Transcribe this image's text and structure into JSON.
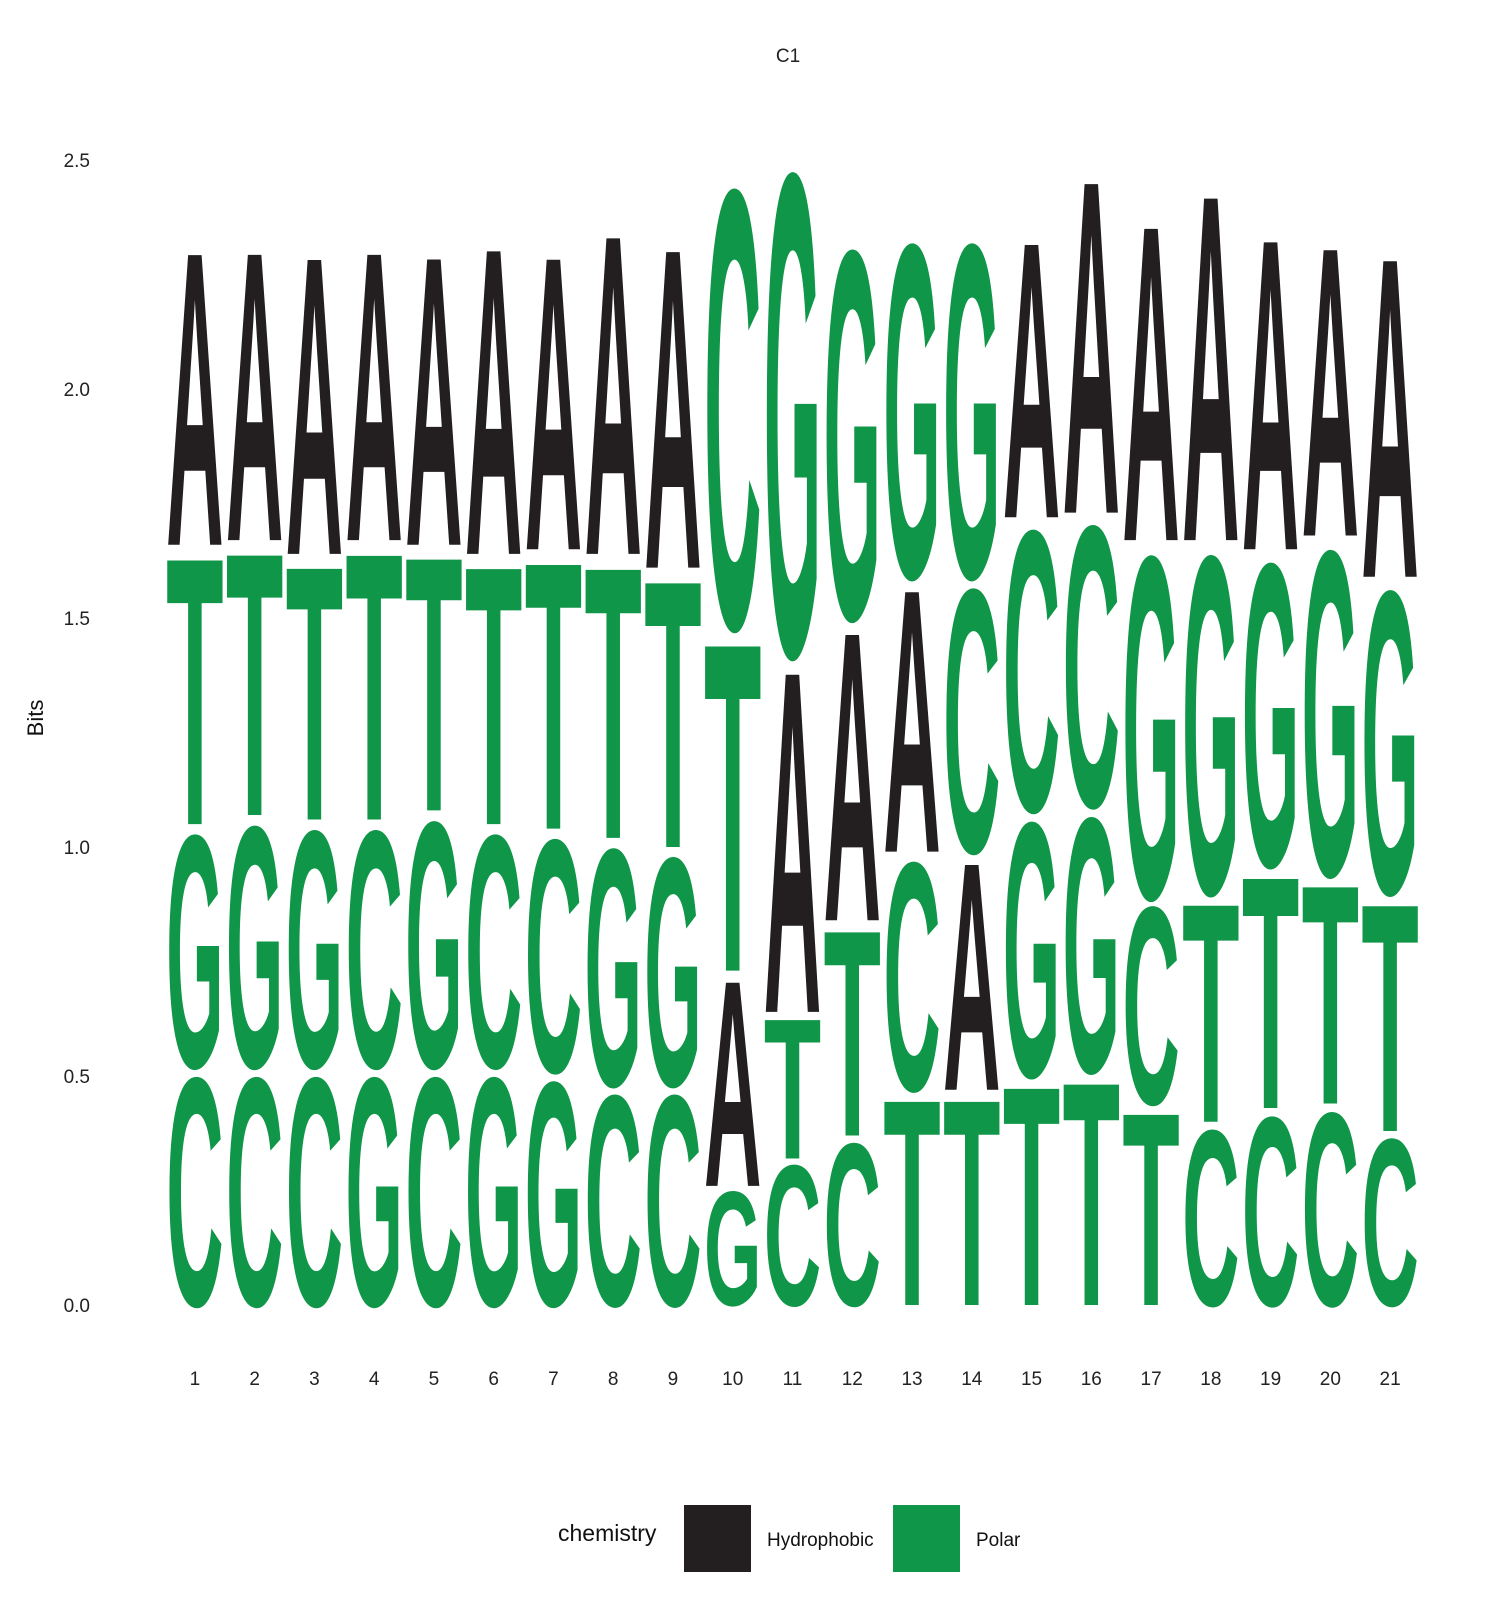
{
  "chart_data": {
    "type": "sequence-logo",
    "title": "C1",
    "ylabel": "Bits",
    "xlabel": "",
    "ylim": [
      0,
      2.5
    ],
    "yticks": [
      "0.0",
      "0.5",
      "1.0",
      "1.5",
      "2.0",
      "2.5"
    ],
    "ytick_values": [
      0,
      0.5,
      1.0,
      1.5,
      2.0,
      2.5
    ],
    "positions": [
      "1",
      "2",
      "3",
      "4",
      "5",
      "6",
      "7",
      "8",
      "9",
      "10",
      "11",
      "12",
      "13",
      "14",
      "15",
      "16",
      "17",
      "18",
      "19",
      "20",
      "21"
    ],
    "grid": false,
    "legend_position": "bottom",
    "colors": {
      "Hydrophobic": "#231f20",
      "Polar": "#109648"
    },
    "letter_groups": {
      "A": "Hydrophobic",
      "C": "Polar",
      "G": "Polar",
      "T": "Polar"
    },
    "stacks": [
      [
        [
          "C",
          0.52
        ],
        [
          "G",
          0.53
        ],
        [
          "T",
          0.61
        ],
        [
          "A",
          0.67
        ]
      ],
      [
        [
          "C",
          0.52
        ],
        [
          "G",
          0.55
        ],
        [
          "T",
          0.6
        ],
        [
          "A",
          0.66
        ]
      ],
      [
        [
          "C",
          0.52
        ],
        [
          "G",
          0.54
        ],
        [
          "T",
          0.58
        ],
        [
          "A",
          0.68
        ]
      ],
      [
        [
          "G",
          0.52
        ],
        [
          "C",
          0.54
        ],
        [
          "T",
          0.61
        ],
        [
          "A",
          0.66
        ]
      ],
      [
        [
          "C",
          0.52
        ],
        [
          "G",
          0.56
        ],
        [
          "T",
          0.58
        ],
        [
          "A",
          0.66
        ]
      ],
      [
        [
          "G",
          0.52
        ],
        [
          "C",
          0.53
        ],
        [
          "T",
          0.59
        ],
        [
          "A",
          0.7
        ]
      ],
      [
        [
          "G",
          0.51
        ],
        [
          "C",
          0.53
        ],
        [
          "T",
          0.61
        ],
        [
          "A",
          0.67
        ]
      ],
      [
        [
          "C",
          0.48
        ],
        [
          "G",
          0.54
        ],
        [
          "T",
          0.62
        ],
        [
          "A",
          0.73
        ]
      ],
      [
        [
          "C",
          0.48
        ],
        [
          "G",
          0.52
        ],
        [
          "T",
          0.61
        ],
        [
          "A",
          0.73
        ]
      ],
      [
        [
          "G",
          0.26
        ],
        [
          "A",
          0.47
        ],
        [
          "T",
          0.75
        ],
        [
          "C",
          1.0
        ]
      ],
      [
        [
          "C",
          0.32
        ],
        [
          "T",
          0.32
        ],
        [
          "A",
          0.78
        ],
        [
          "G",
          1.1
        ]
      ],
      [
        [
          "C",
          0.37
        ],
        [
          "T",
          0.47
        ],
        [
          "A",
          0.66
        ],
        [
          "G",
          0.84
        ]
      ],
      [
        [
          "T",
          0.47
        ],
        [
          "C",
          0.52
        ],
        [
          "A",
          0.6
        ],
        [
          "G",
          0.76
        ]
      ],
      [
        [
          "T",
          0.47
        ],
        [
          "A",
          0.52
        ],
        [
          "C",
          0.6
        ],
        [
          "G",
          0.76
        ]
      ],
      [
        [
          "T",
          0.5
        ],
        [
          "G",
          0.58
        ],
        [
          "C",
          0.64
        ],
        [
          "A",
          0.63
        ]
      ],
      [
        [
          "T",
          0.51
        ],
        [
          "G",
          0.58
        ],
        [
          "C",
          0.64
        ],
        [
          "A",
          0.76
        ]
      ],
      [
        [
          "T",
          0.44
        ],
        [
          "C",
          0.45
        ],
        [
          "G",
          0.78
        ],
        [
          "A",
          0.72
        ]
      ],
      [
        [
          "C",
          0.4
        ],
        [
          "T",
          0.5
        ],
        [
          "G",
          0.77
        ],
        [
          "A",
          0.79
        ]
      ],
      [
        [
          "C",
          0.43
        ],
        [
          "T",
          0.53
        ],
        [
          "G",
          0.69
        ],
        [
          "A",
          0.71
        ]
      ],
      [
        [
          "C",
          0.44
        ],
        [
          "T",
          0.5
        ],
        [
          "G",
          0.74
        ],
        [
          "A",
          0.66
        ]
      ],
      [
        [
          "C",
          0.38
        ],
        [
          "T",
          0.52
        ],
        [
          "G",
          0.69
        ],
        [
          "A",
          0.73
        ]
      ]
    ],
    "legend": {
      "title": "chemistry",
      "entries": [
        "Hydrophobic",
        "Polar"
      ]
    }
  }
}
